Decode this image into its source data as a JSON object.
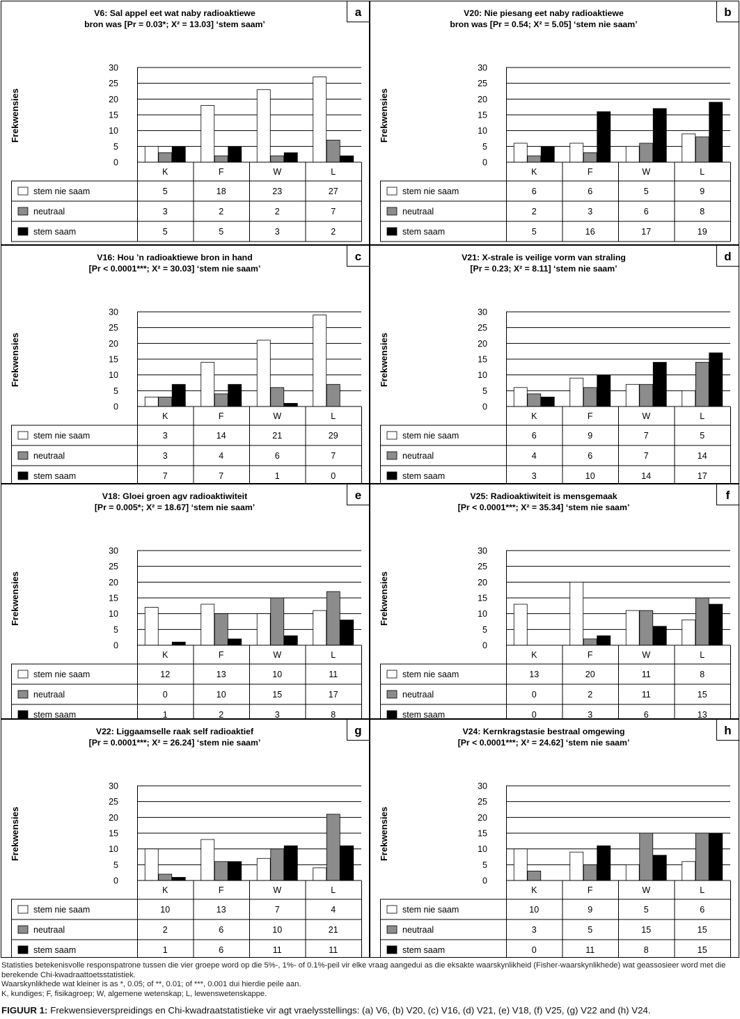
{
  "y_axis_label": "Frekwensies",
  "legend": [
    {
      "name": "stem nie saam",
      "color": "#ffffff"
    },
    {
      "name": "neutraal",
      "color": "#8c8c8c"
    },
    {
      "name": "stem saam",
      "color": "#000000"
    }
  ],
  "footnotes": [
    "Statisties betekenisvolle responspatrone tussen die vier groepe word op die 5%-, 1%- of 0.1%-peil vir elke vraag aangedui as die eksakte waarskynlikheid (Fisher-waarskynlikhede) wat geassosieer word met die berekende Chi-kwadraattoetsstatistiek.",
    "Waarskynlikhede wat kleiner is as *, 0.05; of **, 0.01; of ***, 0.001 dui hierdie peile aan.",
    "K, kundiges; F, fisikagroep; W, algemene wetenskap; L, lewenswetenskappe."
  ],
  "caption": {
    "label": "FIGUUR 1:",
    "text": " Frekwensieverspreidings en Chi-kwadraatstatistieke vir agt vraelysstellings: (a) V6, (b) V20, (c) V16, (d) V21, (e) V18, (f) V25, (g) V22 and (h) V24."
  },
  "chart_data": [
    {
      "type": "bar",
      "letter": "a",
      "title": [
        "V6: Sal appel eet wat naby radioaktiewe",
        "bron was [Pr = 0.03*; Χ² = 13.03] ‘stem saam’"
      ],
      "categories": [
        "K",
        "F",
        "W",
        "L"
      ],
      "ylabel": "Frekwensies",
      "ylim": [
        0,
        30
      ],
      "yticks": [
        0,
        5,
        10,
        15,
        20,
        25,
        30
      ],
      "series": [
        {
          "name": "stem nie saam",
          "values": [
            5,
            18,
            23,
            27
          ]
        },
        {
          "name": "neutraal",
          "values": [
            3,
            2,
            2,
            7
          ]
        },
        {
          "name": "stem saam",
          "values": [
            5,
            5,
            3,
            2
          ]
        }
      ]
    },
    {
      "type": "bar",
      "letter": "b",
      "title": [
        "V20: Nie piesang eet naby radioaktiewe",
        "bron was [Pr = 0.54; Χ² = 5.05] ‘stem nie saam’"
      ],
      "categories": [
        "K",
        "F",
        "W",
        "L"
      ],
      "ylabel": "Frekwensies",
      "ylim": [
        0,
        30
      ],
      "yticks": [
        0,
        5,
        10,
        15,
        20,
        25,
        30
      ],
      "series": [
        {
          "name": "stem nie saam",
          "values": [
            6,
            6,
            5,
            9
          ]
        },
        {
          "name": "neutraal",
          "values": [
            2,
            3,
            6,
            8
          ]
        },
        {
          "name": "stem saam",
          "values": [
            5,
            16,
            17,
            19
          ]
        }
      ]
    },
    {
      "type": "bar",
      "letter": "c",
      "title": [
        "V16: Hou ’n radioaktiewe bron in hand",
        "[Pr < 0.0001***; Χ² = 30.03] ‘stem nie saam’"
      ],
      "categories": [
        "K",
        "F",
        "W",
        "L"
      ],
      "ylabel": "Frekwensies",
      "ylim": [
        0,
        30
      ],
      "yticks": [
        0,
        5,
        10,
        15,
        20,
        25,
        30
      ],
      "series": [
        {
          "name": "stem nie saam",
          "values": [
            3,
            14,
            21,
            29
          ]
        },
        {
          "name": "neutraal",
          "values": [
            3,
            4,
            6,
            7
          ]
        },
        {
          "name": "stem saam",
          "values": [
            7,
            7,
            1,
            0
          ]
        }
      ]
    },
    {
      "type": "bar",
      "letter": "d",
      "title": [
        "V21: X-strale is veilige vorm van straling",
        "[Pr = 0.23; Χ² = 8.11] ‘stem nie saam’"
      ],
      "categories": [
        "K",
        "F",
        "W",
        "L"
      ],
      "ylabel": "Frekwensies",
      "ylim": [
        0,
        30
      ],
      "yticks": [
        0,
        5,
        10,
        15,
        20,
        25,
        30
      ],
      "series": [
        {
          "name": "stem nie saam",
          "values": [
            6,
            9,
            7,
            5
          ]
        },
        {
          "name": "neutraal",
          "values": [
            4,
            6,
            7,
            14
          ]
        },
        {
          "name": "stem saam",
          "values": [
            3,
            10,
            14,
            17
          ]
        }
      ]
    },
    {
      "type": "bar",
      "letter": "e",
      "title": [
        "V18: Gloei groen agv radioaktiwiteit",
        "[Pr = 0.005*; Χ² = 18.67] ‘stem nie saam’"
      ],
      "categories": [
        "K",
        "F",
        "W",
        "L"
      ],
      "ylabel": "Frekwensies",
      "ylim": [
        0,
        30
      ],
      "yticks": [
        0,
        5,
        10,
        15,
        20,
        25,
        30
      ],
      "series": [
        {
          "name": "stem nie saam",
          "values": [
            12,
            13,
            10,
            11
          ]
        },
        {
          "name": "neutraal",
          "values": [
            0,
            10,
            15,
            17
          ]
        },
        {
          "name": "stem saam",
          "values": [
            1,
            2,
            3,
            8
          ]
        }
      ]
    },
    {
      "type": "bar",
      "letter": "f",
      "title": [
        "V25: Radioaktiwiteit is mensgemaak",
        "[Pr < 0.0001***; Χ² = 35.34] ‘stem nie saam’"
      ],
      "categories": [
        "K",
        "F",
        "W",
        "L"
      ],
      "ylabel": "Frekwensies",
      "ylim": [
        0,
        30
      ],
      "yticks": [
        0,
        5,
        10,
        15,
        20,
        25,
        30
      ],
      "series": [
        {
          "name": "stem nie saam",
          "values": [
            13,
            20,
            11,
            8
          ]
        },
        {
          "name": "neutraal",
          "values": [
            0,
            2,
            11,
            15
          ]
        },
        {
          "name": "stem saam",
          "values": [
            0,
            3,
            6,
            13
          ]
        }
      ]
    },
    {
      "type": "bar",
      "letter": "g",
      "title": [
        "V22: Liggaamselle raak self radioaktief",
        "[Pr = 0.0001***; Χ² = 26.24] ‘stem nie saam’"
      ],
      "categories": [
        "K",
        "F",
        "W",
        "L"
      ],
      "ylabel": "Frekwensies",
      "ylim": [
        0,
        30
      ],
      "yticks": [
        0,
        5,
        10,
        15,
        20,
        25,
        30
      ],
      "series": [
        {
          "name": "stem nie saam",
          "values": [
            10,
            13,
            7,
            4
          ]
        },
        {
          "name": "neutraal",
          "values": [
            2,
            6,
            10,
            21
          ]
        },
        {
          "name": "stem saam",
          "values": [
            1,
            6,
            11,
            11
          ]
        }
      ]
    },
    {
      "type": "bar",
      "letter": "h",
      "title": [
        "V24: Kernkragstasie bestraal omgewing",
        "[Pr < 0.0001***; Χ² = 24.62] ‘stem nie saam’"
      ],
      "categories": [
        "K",
        "F",
        "W",
        "L"
      ],
      "ylabel": "Frekwensies",
      "ylim": [
        0,
        30
      ],
      "yticks": [
        0,
        5,
        10,
        15,
        20,
        25,
        30
      ],
      "series": [
        {
          "name": "stem nie saam",
          "values": [
            10,
            9,
            5,
            6
          ]
        },
        {
          "name": "neutraal",
          "values": [
            3,
            5,
            15,
            15
          ]
        },
        {
          "name": "stem saam",
          "values": [
            0,
            11,
            8,
            15
          ]
        }
      ]
    }
  ]
}
